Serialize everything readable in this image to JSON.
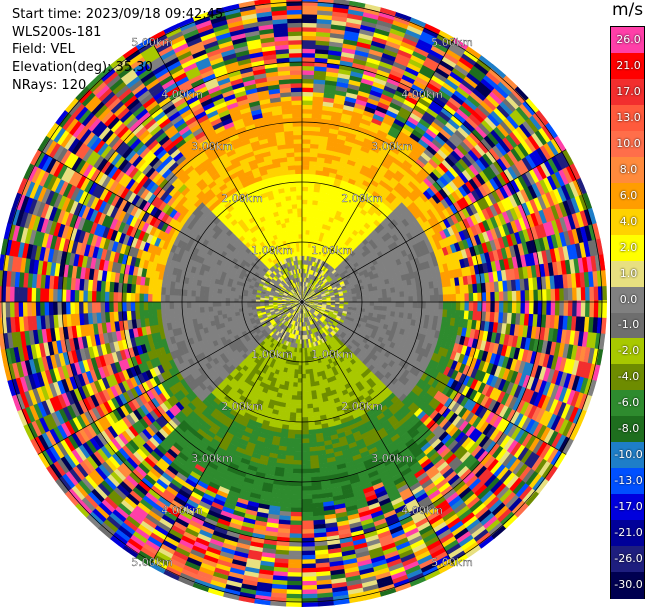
{
  "header": {
    "start_time": "Start time: 2023/09/18 09:42:45",
    "instrument": "WLS200s-181",
    "field": "Field: VEL",
    "elevation": "Elevation(deg): 35.30",
    "nrays": "NRays: 120"
  },
  "colorbar": {
    "unit": "m/s",
    "levels": [
      {
        "label": "26.0",
        "color": "#ff3fa8"
      },
      {
        "label": "21.0",
        "color": "#ff0000"
      },
      {
        "label": "17.0",
        "color": "#f22e2e"
      },
      {
        "label": "13.0",
        "color": "#ff5a3c"
      },
      {
        "label": "10.0",
        "color": "#ff6e4a"
      },
      {
        "label": "8.0",
        "color": "#ff8a3c"
      },
      {
        "label": "6.0",
        "color": "#ff9d00"
      },
      {
        "label": "4.0",
        "color": "#ffd200"
      },
      {
        "label": "2.0",
        "color": "#ffff00"
      },
      {
        "label": "1.0",
        "color": "#e8e080"
      },
      {
        "label": "0.0",
        "color": "#808080"
      },
      {
        "label": "-1.0",
        "color": "#6e6e6e"
      },
      {
        "label": "-2.0",
        "color": "#a8c800"
      },
      {
        "label": "-4.0",
        "color": "#6e8c00"
      },
      {
        "label": "-6.0",
        "color": "#2e8b2e"
      },
      {
        "label": "-8.0",
        "color": "#1e6e1e"
      },
      {
        "label": "-10.0",
        "color": "#1e7ec8"
      },
      {
        "label": "-13.0",
        "color": "#0050ff"
      },
      {
        "label": "-17.0",
        "color": "#0000dd"
      },
      {
        "label": "-21.0",
        "color": "#000099"
      },
      {
        "label": "-26.0",
        "color": "#1e1e7e"
      },
      {
        "label": "-30.0",
        "color": "#000050"
      }
    ]
  },
  "range_labels": [
    "1.00km",
    "2.00km",
    "3.00km",
    "4.00km",
    "5.00km"
  ]
}
